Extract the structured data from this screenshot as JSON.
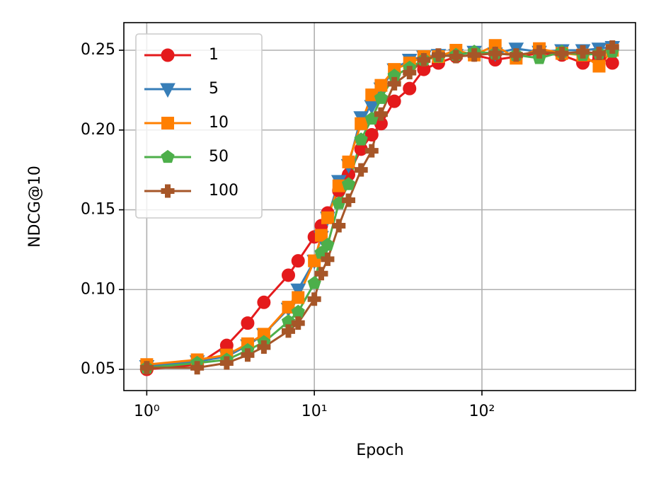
{
  "chart_data": {
    "type": "line",
    "x_label": "Epoch",
    "y_label": "NDCG@10",
    "x_scale": "log",
    "grid": true,
    "legend": "upper left",
    "xlim": [
      0.73,
      825
    ],
    "ylim": [
      0.0367,
      0.2673
    ],
    "xticks": [
      {
        "value": 1,
        "label": "10⁰"
      },
      {
        "value": 10,
        "label": "10¹"
      },
      {
        "value": 100,
        "label": "10²"
      }
    ],
    "yticks": [
      0.05,
      {
        "value": 0.1,
        "label": "0.10"
      },
      0.15,
      {
        "value": 0.2,
        "label": "0.20"
      },
      0.25
    ],
    "x": [
      1,
      2,
      3,
      4,
      5,
      7,
      8,
      10,
      11,
      12,
      14,
      16,
      19,
      22,
      25,
      30,
      37,
      45,
      55,
      70,
      90,
      120,
      160,
      220,
      300,
      400,
      500,
      600
    ],
    "series": [
      {
        "name": "1",
        "color": "#e41a1c",
        "marker": "circle",
        "values": [
          0.05,
          0.053,
          0.065,
          0.079,
          0.092,
          0.109,
          0.118,
          0.133,
          0.14,
          0.148,
          0.162,
          0.172,
          0.188,
          0.197,
          0.204,
          0.218,
          0.226,
          0.238,
          0.242,
          0.246,
          0.247,
          0.244,
          0.246,
          0.248,
          0.247,
          0.242,
          0.245,
          0.242
        ]
      },
      {
        "name": "5",
        "color": "#377eb8",
        "marker": "triangle-down",
        "values": [
          0.052,
          0.055,
          0.058,
          0.065,
          0.072,
          0.088,
          0.1,
          0.118,
          0.133,
          0.145,
          0.168,
          0.178,
          0.208,
          0.215,
          0.226,
          0.238,
          0.244,
          0.246,
          0.247,
          0.247,
          0.249,
          0.248,
          0.251,
          0.249,
          0.25,
          0.25,
          0.251,
          0.252
        ]
      },
      {
        "name": "10",
        "color": "#ff7f00",
        "marker": "square",
        "values": [
          0.053,
          0.056,
          0.059,
          0.066,
          0.072,
          0.089,
          0.095,
          0.118,
          0.134,
          0.145,
          0.165,
          0.18,
          0.204,
          0.222,
          0.228,
          0.238,
          0.242,
          0.246,
          0.246,
          0.25,
          0.247,
          0.253,
          0.245,
          0.251,
          0.248,
          0.247,
          0.24,
          0.25
        ]
      },
      {
        "name": "50",
        "color": "#4daf4a",
        "marker": "pentagon",
        "values": [
          0.051,
          0.054,
          0.056,
          0.062,
          0.067,
          0.08,
          0.086,
          0.104,
          0.123,
          0.128,
          0.154,
          0.166,
          0.194,
          0.207,
          0.22,
          0.234,
          0.239,
          0.244,
          0.246,
          0.247,
          0.249,
          0.248,
          0.247,
          0.245,
          0.249,
          0.247,
          0.248,
          0.249
        ]
      },
      {
        "name": "100",
        "color": "#a65628",
        "marker": "plus",
        "values": [
          0.051,
          0.051,
          0.054,
          0.059,
          0.064,
          0.074,
          0.079,
          0.094,
          0.11,
          0.119,
          0.14,
          0.156,
          0.175,
          0.187,
          0.21,
          0.229,
          0.236,
          0.244,
          0.247,
          0.246,
          0.247,
          0.248,
          0.247,
          0.249,
          0.248,
          0.249,
          0.248,
          0.252
        ]
      }
    ]
  }
}
